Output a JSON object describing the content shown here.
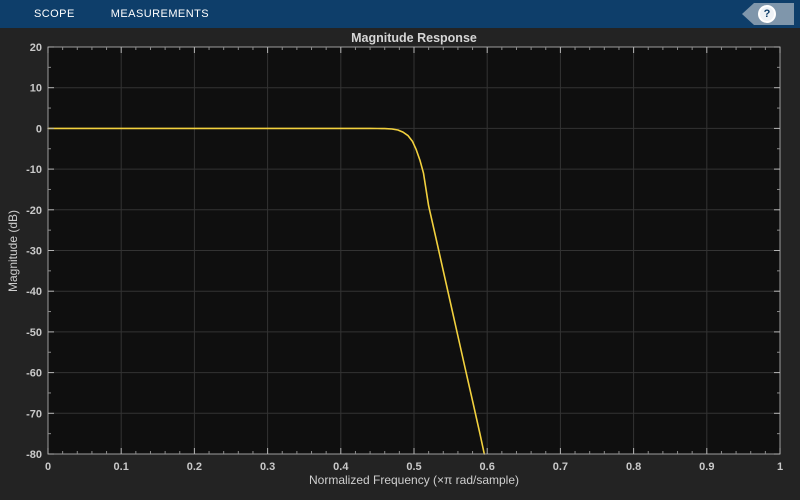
{
  "toolbar": {
    "tabs": [
      {
        "label": "SCOPE"
      },
      {
        "label": "MEASUREMENTS"
      }
    ],
    "help_label": "?"
  },
  "colors": {
    "toolbar_bg": "#0e3e6a",
    "figure_bg": "#232323",
    "plot_bg": "#0f0f0f",
    "grid": "#333333",
    "axis_box": "#9c9c9c",
    "tick": "#b4b4b4",
    "tick_minor": "#8c8c8c",
    "tick_label": "#c9c9c9",
    "axis_label": "#cfcfcf",
    "curve": "#f2d13e",
    "help_badge_bg": "#7f96ab"
  },
  "chart_data": {
    "type": "line",
    "title": "Magnitude Response",
    "xlabel": "Normalized Frequency (×π rad/sample)",
    "ylabel": "Magnitude (dB)",
    "xlim": [
      0,
      1
    ],
    "ylim": [
      -80,
      20
    ],
    "grid": true,
    "legend": "none",
    "xticks": [
      {
        "v": 0,
        "t": "0"
      },
      {
        "v": 0.1,
        "t": "0.1"
      },
      {
        "v": 0.2,
        "t": "0.2"
      },
      {
        "v": 0.3,
        "t": "0.3"
      },
      {
        "v": 0.4,
        "t": "0.4"
      },
      {
        "v": 0.5,
        "t": "0.5"
      },
      {
        "v": 0.6,
        "t": "0.6"
      },
      {
        "v": 0.7,
        "t": "0.7"
      },
      {
        "v": 0.8,
        "t": "0.8"
      },
      {
        "v": 0.9,
        "t": "0.9"
      },
      {
        "v": 1,
        "t": "1"
      }
    ],
    "yticks": [
      {
        "v": 20,
        "t": "20"
      },
      {
        "v": 10,
        "t": "10"
      },
      {
        "v": 0,
        "t": "0"
      },
      {
        "v": -10,
        "t": "-10"
      },
      {
        "v": -20,
        "t": "-20"
      },
      {
        "v": -30,
        "t": "-30"
      },
      {
        "v": -40,
        "t": "-40"
      },
      {
        "v": -50,
        "t": "-50"
      },
      {
        "v": -60,
        "t": "-60"
      },
      {
        "v": -70,
        "t": "-70"
      },
      {
        "v": -80,
        "t": "-80"
      }
    ],
    "x_minor_step": 0.02,
    "y_minor_step": 5,
    "series": [
      {
        "name": "lowpass-filter-magnitude",
        "color": "#f2d13e",
        "x": [
          0,
          0.05,
          0.1,
          0.15,
          0.2,
          0.25,
          0.3,
          0.35,
          0.4,
          0.42,
          0.44,
          0.45,
          0.46,
          0.47,
          0.478,
          0.485,
          0.492,
          0.498,
          0.503,
          0.508,
          0.513,
          0.52,
          0.53,
          0.54,
          0.55,
          0.56,
          0.57,
          0.58,
          0.59,
          0.596
        ],
        "y": [
          0,
          0,
          0,
          0,
          0,
          0,
          0,
          0,
          0,
          0,
          0,
          -0.02,
          -0.05,
          -0.15,
          -0.4,
          -0.9,
          -1.8,
          -3.2,
          -5.2,
          -7.8,
          -11,
          -19,
          -27,
          -35,
          -43,
          -51,
          -59,
          -67,
          -75,
          -80
        ]
      }
    ]
  }
}
